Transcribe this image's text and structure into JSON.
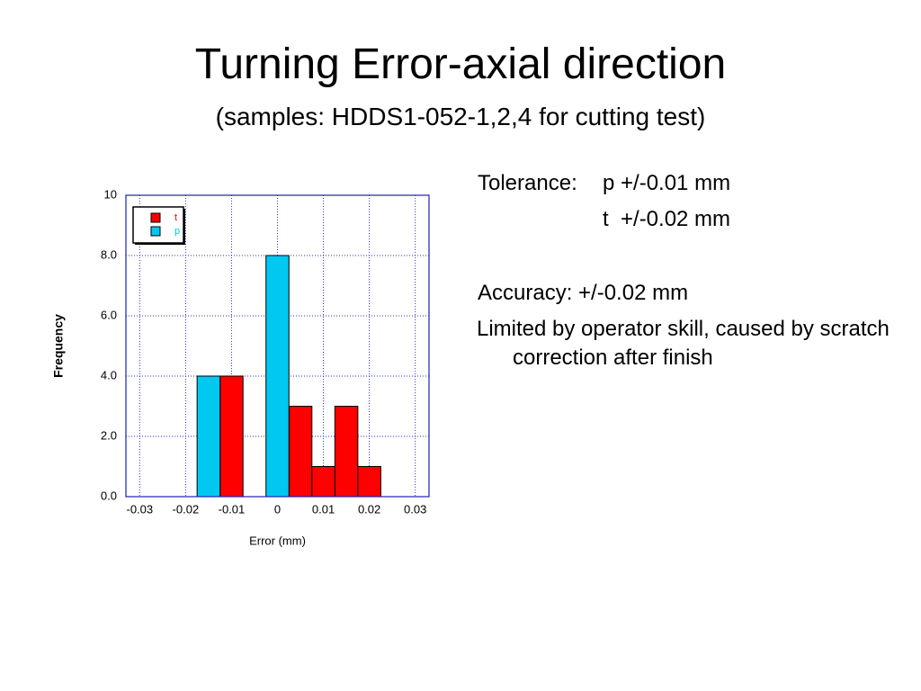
{
  "slide": {
    "title": "Turning Error-axial direction",
    "subtitle": "(samples: HDDS1-052-1,2,4 for cutting test)",
    "tolerance_label": "Tolerance:",
    "tolerance_p": "p +/-0.01 mm",
    "tolerance_t": "t  +/-0.02 mm",
    "accuracy": "Accuracy: +/-0.02 mm",
    "note": "Limited by operator skill, caused by scratch correction after finish"
  },
  "chart_data": {
    "type": "histogram",
    "x_label": "Error (mm)",
    "y_label": "Frequency",
    "bins": [
      -0.0175,
      -0.0125,
      -0.0075,
      -0.0025,
      0.0025,
      0.0075,
      0.0125,
      0.0175,
      0.0225
    ],
    "series": [
      {
        "name": "t",
        "color": "#ff0000",
        "values": [
          null,
          4,
          null,
          null,
          3,
          1,
          3,
          1
        ]
      },
      {
        "name": "p",
        "color": "#00c8f0",
        "values": [
          4,
          null,
          null,
          8,
          null,
          null,
          null,
          null
        ]
      }
    ],
    "xlim": [
      -0.033,
      0.033
    ],
    "xticks": [
      -0.03,
      -0.02,
      -0.01,
      0,
      0.01,
      0.02,
      0.03
    ],
    "ylim": [
      0,
      10
    ],
    "yticks": [
      {
        "value": 0,
        "label": "0.0"
      },
      {
        "value": 2,
        "label": "2.0"
      },
      {
        "value": 4,
        "label": "4.0"
      },
      {
        "value": 6,
        "label": "6.0"
      },
      {
        "value": 8,
        "label": "8.0"
      },
      10
    ],
    "grid": true,
    "legend": "upper left"
  }
}
